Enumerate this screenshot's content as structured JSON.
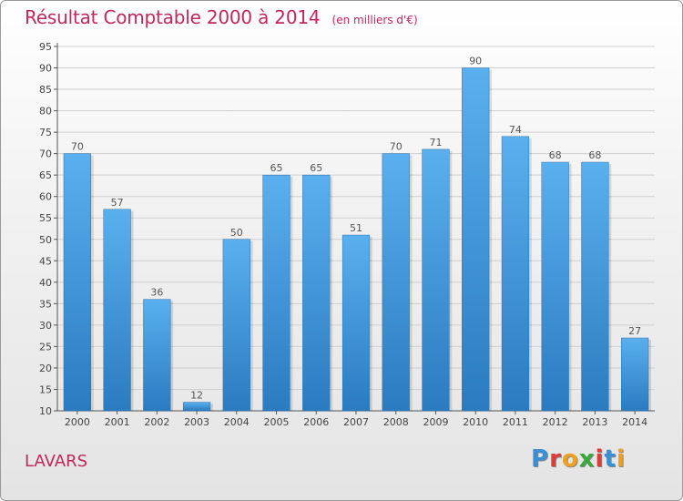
{
  "title": "Résultat Comptable 2000 à 2014",
  "subtitle": "(en milliers d'€)",
  "commune": "LAVARS",
  "logo": {
    "letters": [
      "P",
      "r",
      "o",
      "x",
      "i",
      "t",
      "i"
    ],
    "colors": [
      "#3a8fd6",
      "#e03a3a",
      "#f0a020",
      "#3aa83a",
      "#e03a3a",
      "#3a8fd6",
      "#f0a020"
    ]
  },
  "colors": {
    "bar_top": "#5ab0ee",
    "bar_bottom": "#2a7bc0",
    "grid": "#cfcfcf",
    "title": "#c2285a"
  },
  "chart_data": {
    "type": "bar",
    "title": "Résultat Comptable 2000 à 2014",
    "subtitle": "(en milliers d'€)",
    "categories": [
      "2000",
      "2001",
      "2002",
      "2003",
      "2004",
      "2005",
      "2006",
      "2007",
      "2008",
      "2009",
      "2010",
      "2011",
      "2012",
      "2013",
      "2014"
    ],
    "values": [
      70,
      57,
      36,
      12,
      50,
      65,
      65,
      51,
      70,
      71,
      90,
      74,
      68,
      68,
      27
    ],
    "ylim": [
      10,
      95
    ],
    "yticks": [
      10,
      15,
      20,
      25,
      30,
      35,
      40,
      45,
      50,
      55,
      60,
      65,
      70,
      75,
      80,
      85,
      90,
      95
    ],
    "grid": true,
    "xlabel": "",
    "ylabel": ""
  }
}
